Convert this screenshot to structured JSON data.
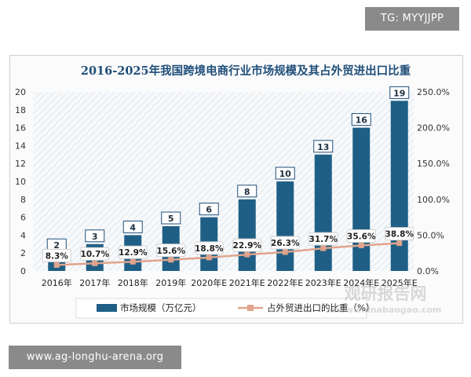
{
  "overlays": {
    "top_tag": "TG: MYYJJPP",
    "bottom_tag": "www.ag-longhu-arena.org",
    "watermark_cn": "观研报告网",
    "watermark_en": "www.chinabaogao.com"
  },
  "colors": {
    "bar": "#1f5f85",
    "bar_hatch": "#e7eff5",
    "line": "#e0a48c",
    "title": "#1f4e79",
    "label_border": "#1f4e79"
  },
  "chart_data": {
    "type": "bar",
    "title": "2016-2025年我国跨境电商行业市场规模及其占外贸进出口比重",
    "categories": [
      "2016年",
      "2017年",
      "2018年",
      "2019年",
      "2020年E",
      "2021年E",
      "2022年E",
      "2023年E",
      "2024年E",
      "2025年E"
    ],
    "series": [
      {
        "name": "市场规模（万亿元）",
        "type": "bar",
        "axis": "left",
        "values": [
          2,
          3,
          4,
          5,
          6,
          8,
          10,
          13,
          16,
          19
        ],
        "labels": [
          "2",
          "3",
          "4",
          "5",
          "6",
          "8",
          "10",
          "13",
          "16",
          "19"
        ]
      },
      {
        "name": "占外贸进出口的比重（%）",
        "type": "line",
        "axis": "right",
        "values": [
          8.3,
          10.7,
          12.9,
          15.6,
          18.8,
          22.9,
          26.3,
          31.7,
          35.6,
          38.8
        ],
        "labels": [
          "8.3%",
          "10.7%",
          "12.9%",
          "15.6%",
          "18.8%",
          "22.9%",
          "26.3%",
          "31.7%",
          "35.6%",
          "38.8%"
        ]
      }
    ],
    "y_left": {
      "min": 0,
      "max": 20,
      "ticks": [
        "0",
        "2",
        "4",
        "6",
        "8",
        "10",
        "12",
        "14",
        "16",
        "18",
        "20"
      ]
    },
    "y_right": {
      "min": 0,
      "max": 250,
      "ticks": [
        "0.0%",
        "50.0%",
        "100.0%",
        "150.0%",
        "200.0%",
        "250.0%"
      ]
    },
    "xlabel": "",
    "ylabel": "",
    "grid": false,
    "legend": "bottom"
  }
}
